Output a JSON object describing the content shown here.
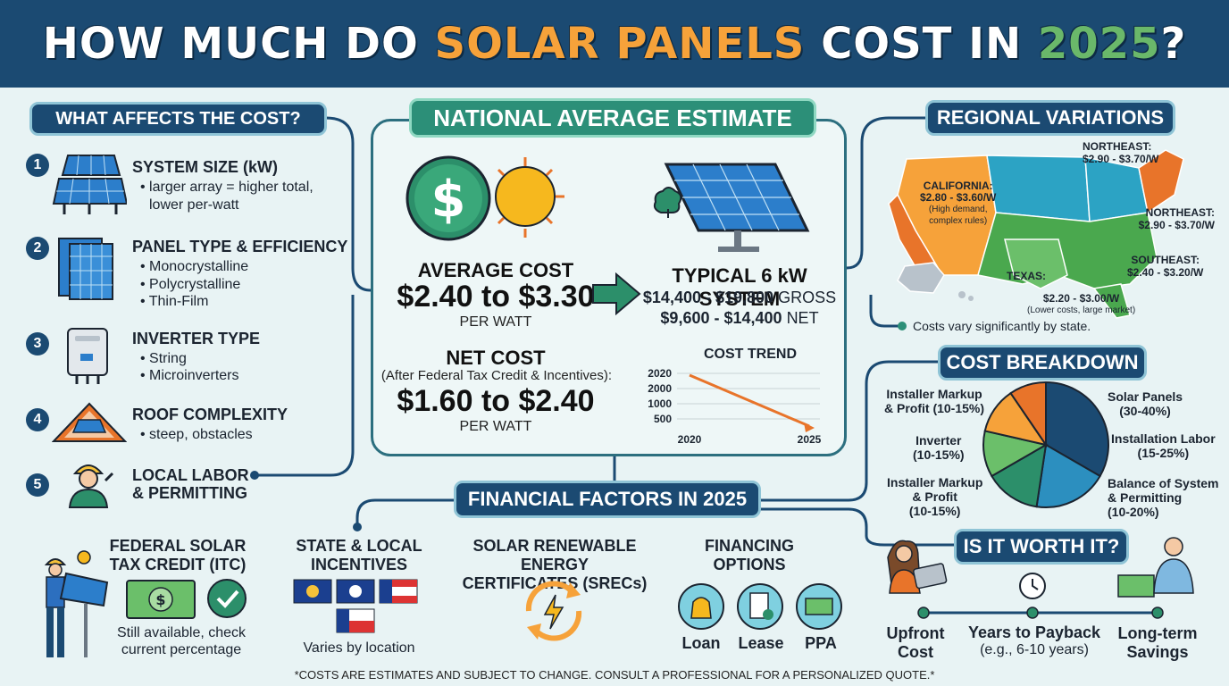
{
  "header": {
    "title_part1": "HOW MUCH DO ",
    "title_part2": "SOLAR PANELS",
    "title_part3": " COST IN ",
    "title_part4": "2025",
    "title_part5": "?"
  },
  "left": {
    "heading": "WHAT AFFECTS THE COST?",
    "factors": [
      {
        "num": "1",
        "title": "SYSTEM SIZE (kW)",
        "lines": [
          "• larger array = higher total,",
          "  lower per-watt"
        ]
      },
      {
        "num": "2",
        "title": "PANEL TYPE & EFFICIENCY",
        "lines": [
          "• Monocrystalline",
          "• Polycrystalline",
          "• Thin-Film"
        ]
      },
      {
        "num": "3",
        "title": "INVERTER TYPE",
        "lines": [
          "• String",
          "• Microinverters"
        ]
      },
      {
        "num": "4",
        "title": "ROOF COMPLEXITY",
        "lines": [
          "• steep, obstacles"
        ]
      },
      {
        "num": "5",
        "title": "LOCAL LABOR",
        "title2": "& PERMITTING",
        "lines": []
      }
    ]
  },
  "center": {
    "heading": "NATIONAL AVERAGE ESTIMATE",
    "avg_label": "AVERAGE COST",
    "avg_value": "$2.40 to $3.30",
    "avg_unit": "PER WATT",
    "system_label": "TYPICAL 6 kW SYSTEM",
    "system_gross_value": "$14,400 - $19,800",
    "system_gross_label": "GROSS",
    "system_net_value": "$9,600 - $14,400",
    "system_net_label": "NET",
    "net_label": "NET COST",
    "net_sub": "(After Federal Tax Credit & Incentives):",
    "net_value": "$1.60 to $2.40",
    "net_unit": "PER WATT",
    "currency_symbol": "$"
  },
  "chart_data": {
    "type": "line",
    "title": "COST TREND",
    "x": [
      2020,
      2025
    ],
    "xlabels": [
      "2020",
      "2025"
    ],
    "yticks": [
      "2020",
      "2000",
      "1000",
      "500"
    ],
    "series": [
      {
        "values": [
          2020,
          500
        ]
      }
    ],
    "xlabel": "",
    "ylabel": "",
    "grid": true,
    "color": "#e8742a"
  },
  "regional": {
    "heading": "REGIONAL VARIATIONS",
    "labels": [
      {
        "title": "NORTHEAST:",
        "value": "$2.90 - $3.70/W"
      },
      {
        "title": "CALIFORNIA:",
        "value": "$2.80 - $3.60/W",
        "note1": "(High demand,",
        "note2": "complex rules)"
      },
      {
        "title": "NORTHEAST:",
        "value": "$2.90 - $3.70/W"
      },
      {
        "title": "SOUTHEAST:",
        "value": "$2.40 - $3.20/W"
      },
      {
        "title": "TEXAS:",
        "value": "$2.20 - $3.00/W",
        "note1": "(Lower costs, large market)"
      }
    ],
    "footnote": "Costs vary significantly by state."
  },
  "breakdown": {
    "heading": "COST BREAKDOWN",
    "chart_data": {
      "type": "pie",
      "slices": [
        {
          "label": "Solar Panels (30-40%)",
          "value": 35,
          "color": "#1b4a72"
        },
        {
          "label": "Installation Labor (15-25%)",
          "value": 20,
          "color": "#2c8fbf"
        },
        {
          "label": "Balance of System & Permitting (10-20%)",
          "value": 15,
          "color": "#2c8f6a"
        },
        {
          "label": "Installer Markup & Profit (10-15%)",
          "value": 12.5,
          "color": "#6bbf6a"
        },
        {
          "label": "Inverter (10-15%)",
          "value": 12.5,
          "color": "#f6a23a"
        },
        {
          "label": "Installer Markup & Profit (10-15%)",
          "value": 10,
          "color": "#e8742a"
        }
      ]
    },
    "labels": {
      "markup_top_1": "Installer Markup",
      "markup_top_2": "& Profit (10-15%)",
      "panels_1": "Solar Panels",
      "panels_2": "(30-40%)",
      "inverter_1": "Inverter",
      "inverter_2": "(10-15%)",
      "labor_1": "Installation Labor",
      "labor_2": "(15-25%)",
      "markup_bot_1": "Installer Markup",
      "markup_bot_2": "& Profit",
      "markup_bot_3": "(10-15%)",
      "bos_1": "Balance of System",
      "bos_2": "& Permitting",
      "bos_3": "(10-20%)"
    }
  },
  "financial": {
    "heading": "FINANCIAL FACTORS IN 2025",
    "itc_title_1": "FEDERAL SOLAR",
    "itc_title_2": "TAX CREDIT (ITC)",
    "itc_body_1": "Still available, check",
    "itc_body_2": "current percentage",
    "state_title_1": "STATE & LOCAL",
    "state_title_2": "INCENTIVES",
    "state_body": "Varies by location",
    "srec_title_1": "SOLAR RENEWABLE ENERGY",
    "srec_title_2": "CERTIFICATES (SRECs)",
    "fin_title_1": "FINANCING",
    "fin_title_2": "OPTIONS",
    "options": [
      "Loan",
      "Lease",
      "PPA"
    ]
  },
  "worth": {
    "heading": "IS IT WORTH IT?",
    "steps": [
      {
        "line1": "Upfront",
        "line2": "Cost"
      },
      {
        "line1": "Years to Payback",
        "line2": "(e.g., 6-10 years)"
      },
      {
        "line1": "Long-term",
        "line2": "Savings"
      }
    ]
  },
  "footer": "*COSTS ARE ESTIMATES AND SUBJECT TO CHANGE. CONSULT A PROFESSIONAL FOR A PERSONALIZED QUOTE.*",
  "colors": {
    "navy": "#1b4a72",
    "teal": "#2c8f78",
    "orange": "#f6a23a",
    "green": "#6ab86a",
    "background": "#e8f3f4"
  }
}
